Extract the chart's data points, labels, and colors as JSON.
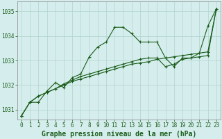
{
  "background_color": "#d5eeed",
  "grid_color": "#b0d4cc",
  "line_color": "#1a5c1a",
  "title": "Graphe pression niveau de la mer (hPa)",
  "title_fontsize": 7,
  "xlim": [
    -0.5,
    23.5
  ],
  "ylim": [
    1030.6,
    1035.4
  ],
  "yticks": [
    1031,
    1032,
    1033,
    1034,
    1035
  ],
  "xticks": [
    0,
    1,
    2,
    3,
    4,
    5,
    6,
    7,
    8,
    9,
    10,
    11,
    12,
    13,
    14,
    15,
    16,
    17,
    18,
    19,
    20,
    21,
    22,
    23
  ],
  "line1_jagged": [
    1030.75,
    1031.3,
    1031.3,
    1031.75,
    1032.1,
    1031.9,
    1032.3,
    1032.45,
    1033.15,
    1033.55,
    1033.75,
    1034.35,
    1034.35,
    1034.1,
    1033.75,
    1033.75,
    1033.75,
    1033.1,
    1032.75,
    1033.1,
    1033.1,
    1033.3,
    1034.4,
    1035.1
  ],
  "line2_straight": [
    1030.75,
    1031.3,
    1031.55,
    1031.7,
    1031.85,
    1032.0,
    1032.15,
    1032.25,
    1032.35,
    1032.45,
    1032.55,
    1032.65,
    1032.75,
    1032.85,
    1032.9,
    1032.95,
    1033.05,
    1033.1,
    1033.15,
    1033.2,
    1033.25,
    1033.3,
    1033.35,
    1035.1
  ],
  "line3_dip": [
    1030.75,
    1031.3,
    1031.55,
    1031.7,
    1031.85,
    1032.05,
    1032.2,
    1032.35,
    1032.45,
    1032.55,
    1032.65,
    1032.75,
    1032.85,
    1032.95,
    1033.05,
    1033.1,
    1033.1,
    1032.75,
    1032.85,
    1033.05,
    1033.1,
    1033.15,
    1033.2,
    1035.1
  ]
}
